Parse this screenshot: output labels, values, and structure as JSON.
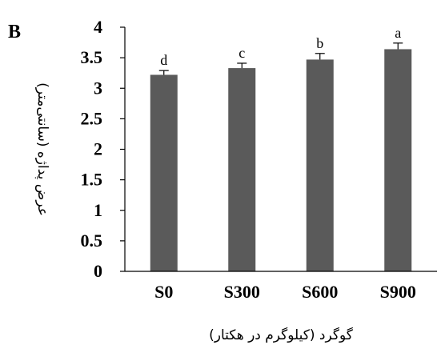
{
  "panel_label": "B",
  "colors": {
    "bar": "#5a5a5a",
    "axis": "#000000",
    "error_bar": "#000000"
  },
  "chart_data": {
    "type": "bar",
    "categories": [
      "S0",
      "S300",
      "S600",
      "S900"
    ],
    "values": [
      3.22,
      3.33,
      3.47,
      3.64
    ],
    "errors": [
      0.07,
      0.08,
      0.1,
      0.1
    ],
    "data_labels": [
      "d",
      "c",
      "b",
      "a"
    ],
    "xlabel": "گوگرد (کیلوگرم در هکتار)",
    "ylabel": "عرض پداژه (سانتی‌متر)",
    "ylim": [
      0,
      4
    ],
    "yticks": [
      0,
      0.5,
      1,
      1.5,
      2,
      2.5,
      3,
      3.5,
      4
    ],
    "ytick_labels": [
      "0",
      "0.5",
      "1",
      "1.5",
      "2",
      "2.5",
      "3",
      "3.5",
      "4"
    ],
    "grid": false
  }
}
